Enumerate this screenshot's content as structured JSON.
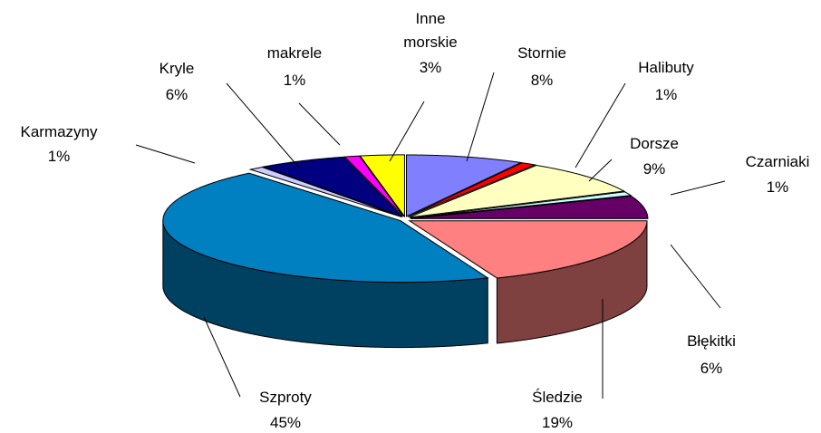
{
  "chart_data": {
    "type": "pie",
    "categories": [
      "Stornie",
      "Halibuty",
      "Dorsze",
      "Czarniaki",
      "Błękitki",
      "Śledzie",
      "Szproty",
      "Karmazyny",
      "Kryle",
      "makrele",
      "Inne morskie"
    ],
    "values": [
      8,
      1,
      9,
      1,
      6,
      19,
      45,
      1,
      6,
      1,
      3
    ],
    "value_labels": [
      "8%",
      "1%",
      "9%",
      "1%",
      "6%",
      "19%",
      "45%",
      "1%",
      "6%",
      "1%",
      "3%"
    ],
    "colors": [
      "#8080ff",
      "#ff0000",
      "#ffffc0",
      "#ccffff",
      "#660066",
      "#ff8080",
      "#0080c0",
      "#ccccff",
      "#000080",
      "#ff00ff",
      "#ffff00"
    ]
  }
}
